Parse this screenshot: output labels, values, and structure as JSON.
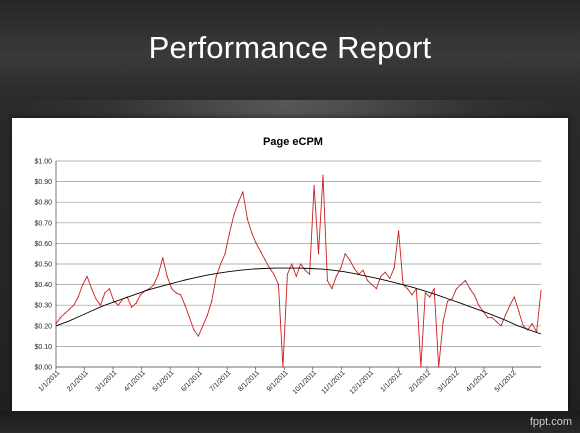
{
  "slide": {
    "title": "Performance Report",
    "credit": "fppt.com"
  },
  "colors": {
    "series_line": "#cc1f1f",
    "trend_line": "#000000",
    "grid": "#9a9a9a"
  },
  "chart_data": {
    "type": "line",
    "title": "Page eCPM",
    "xlabel": "",
    "ylabel": "",
    "ylim": [
      0,
      1
    ],
    "yticks": [
      "$0.00",
      "$0.10",
      "$0.20",
      "$0.30",
      "$0.40",
      "$0.50",
      "$0.60",
      "$0.70",
      "$0.80",
      "$0.90",
      "$1.00"
    ],
    "xticks": [
      "1/1/2011",
      "2/1/2011",
      "3/1/2011",
      "4/1/2011",
      "5/1/2011",
      "6/1/2011",
      "7/1/2011",
      "8/1/2011",
      "9/1/2011",
      "10/1/2011",
      "11/1/2011",
      "12/1/2011",
      "1/1/2012",
      "2/1/2012",
      "3/1/2012",
      "4/1/2012",
      "5/1/2012"
    ],
    "grid": true,
    "legend": "none",
    "series": [
      {
        "values": [
          0.21,
          0.24,
          0.26,
          0.28,
          0.3,
          0.34,
          0.4,
          0.44,
          0.38,
          0.33,
          0.3,
          0.36,
          0.38,
          0.32,
          0.3,
          0.33,
          0.34,
          0.29,
          0.31,
          0.35,
          0.37,
          0.38,
          0.4,
          0.45,
          0.53,
          0.44,
          0.38,
          0.36,
          0.35,
          0.3,
          0.24,
          0.18,
          0.15,
          0.2,
          0.25,
          0.32,
          0.44,
          0.5,
          0.55,
          0.65,
          0.74,
          0.8,
          0.85,
          0.72,
          0.65,
          0.6,
          0.56,
          0.52,
          0.48,
          0.45,
          0.4,
          0.0,
          0.45,
          0.5,
          0.44,
          0.5,
          0.47,
          0.45,
          0.88,
          0.55,
          0.93,
          0.42,
          0.38,
          0.44,
          0.48,
          0.55,
          0.52,
          0.48,
          0.45,
          0.47,
          0.42,
          0.4,
          0.38,
          0.44,
          0.46,
          0.43,
          0.48,
          0.66,
          0.4,
          0.38,
          0.35,
          0.38,
          0.0,
          0.36,
          0.34,
          0.38,
          0.0,
          0.22,
          0.32,
          0.33,
          0.38,
          0.4,
          0.42,
          0.38,
          0.35,
          0.3,
          0.27,
          0.24,
          0.24,
          0.22,
          0.2,
          0.25,
          0.3,
          0.34,
          0.27,
          0.2,
          0.18,
          0.21,
          0.17,
          0.37
        ]
      },
      {
        "name": "",
        "trend": true,
        "values": [
          0.2,
          0.22,
          0.245,
          0.27,
          0.295,
          0.315,
          0.335,
          0.355,
          0.375,
          0.39,
          0.405,
          0.42,
          0.433,
          0.445,
          0.455,
          0.463,
          0.47,
          0.475,
          0.478,
          0.48,
          0.48,
          0.48,
          0.478,
          0.475,
          0.47,
          0.462,
          0.452,
          0.44,
          0.428,
          0.414,
          0.4,
          0.385,
          0.368,
          0.35,
          0.33,
          0.31,
          0.29,
          0.27,
          0.248,
          0.225,
          0.2,
          0.18,
          0.16
        ]
      }
    ]
  }
}
